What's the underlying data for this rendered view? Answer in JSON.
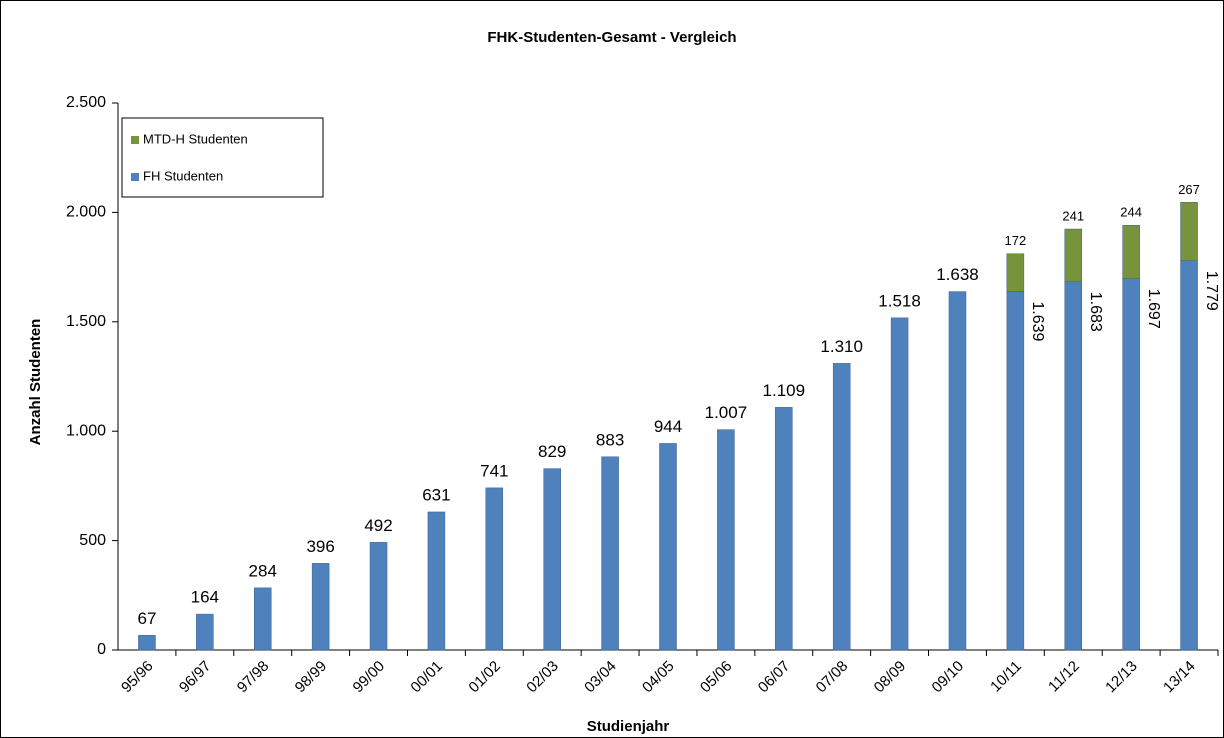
{
  "chart_data": {
    "type": "stacked_bar",
    "title": "FHK-Studenten-Gesamt - Vergleich",
    "x_label": "Studienjahr",
    "y_label": "Anzahl Studenten",
    "categories": [
      "95/96",
      "96/97",
      "97/98",
      "98/99",
      "99/00",
      "00/01",
      "01/02",
      "02/03",
      "03/04",
      "04/05",
      "05/06",
      "06/07",
      "07/08",
      "08/09",
      "09/10",
      "10/11",
      "11/12",
      "12/13",
      "13/14"
    ],
    "series": [
      {
        "name": "FH Studenten",
        "color": "#4f81bd",
        "values": [
          67,
          164,
          284,
          396,
          492,
          631,
          741,
          829,
          883,
          944,
          1007,
          1109,
          1310,
          1518,
          1638,
          1639,
          1683,
          1697,
          1779
        ],
        "value_labels": [
          "67",
          "164",
          "284",
          "396",
          "492",
          "631",
          "741",
          "829",
          "883",
          "944",
          "1.007",
          "1.109",
          "1.310",
          "1.518",
          "1.638",
          "1.639",
          "1.683",
          "1.697",
          "1.779"
        ]
      },
      {
        "name": "MTD-H Studenten",
        "color": "#77933c",
        "values": [
          null,
          null,
          null,
          null,
          null,
          null,
          null,
          null,
          null,
          null,
          null,
          null,
          null,
          null,
          null,
          172,
          241,
          244,
          267
        ]
      }
    ],
    "ylim": [
      0,
      2500
    ],
    "yticks": [
      0,
      500,
      {
        "value": 1000,
        "label": "1.000"
      },
      {
        "value": 1500,
        "label": "1.500"
      },
      {
        "value": 2000,
        "label": "2.000"
      },
      {
        "value": 2500,
        "label": "2.500"
      }
    ],
    "legend": "top-left"
  }
}
